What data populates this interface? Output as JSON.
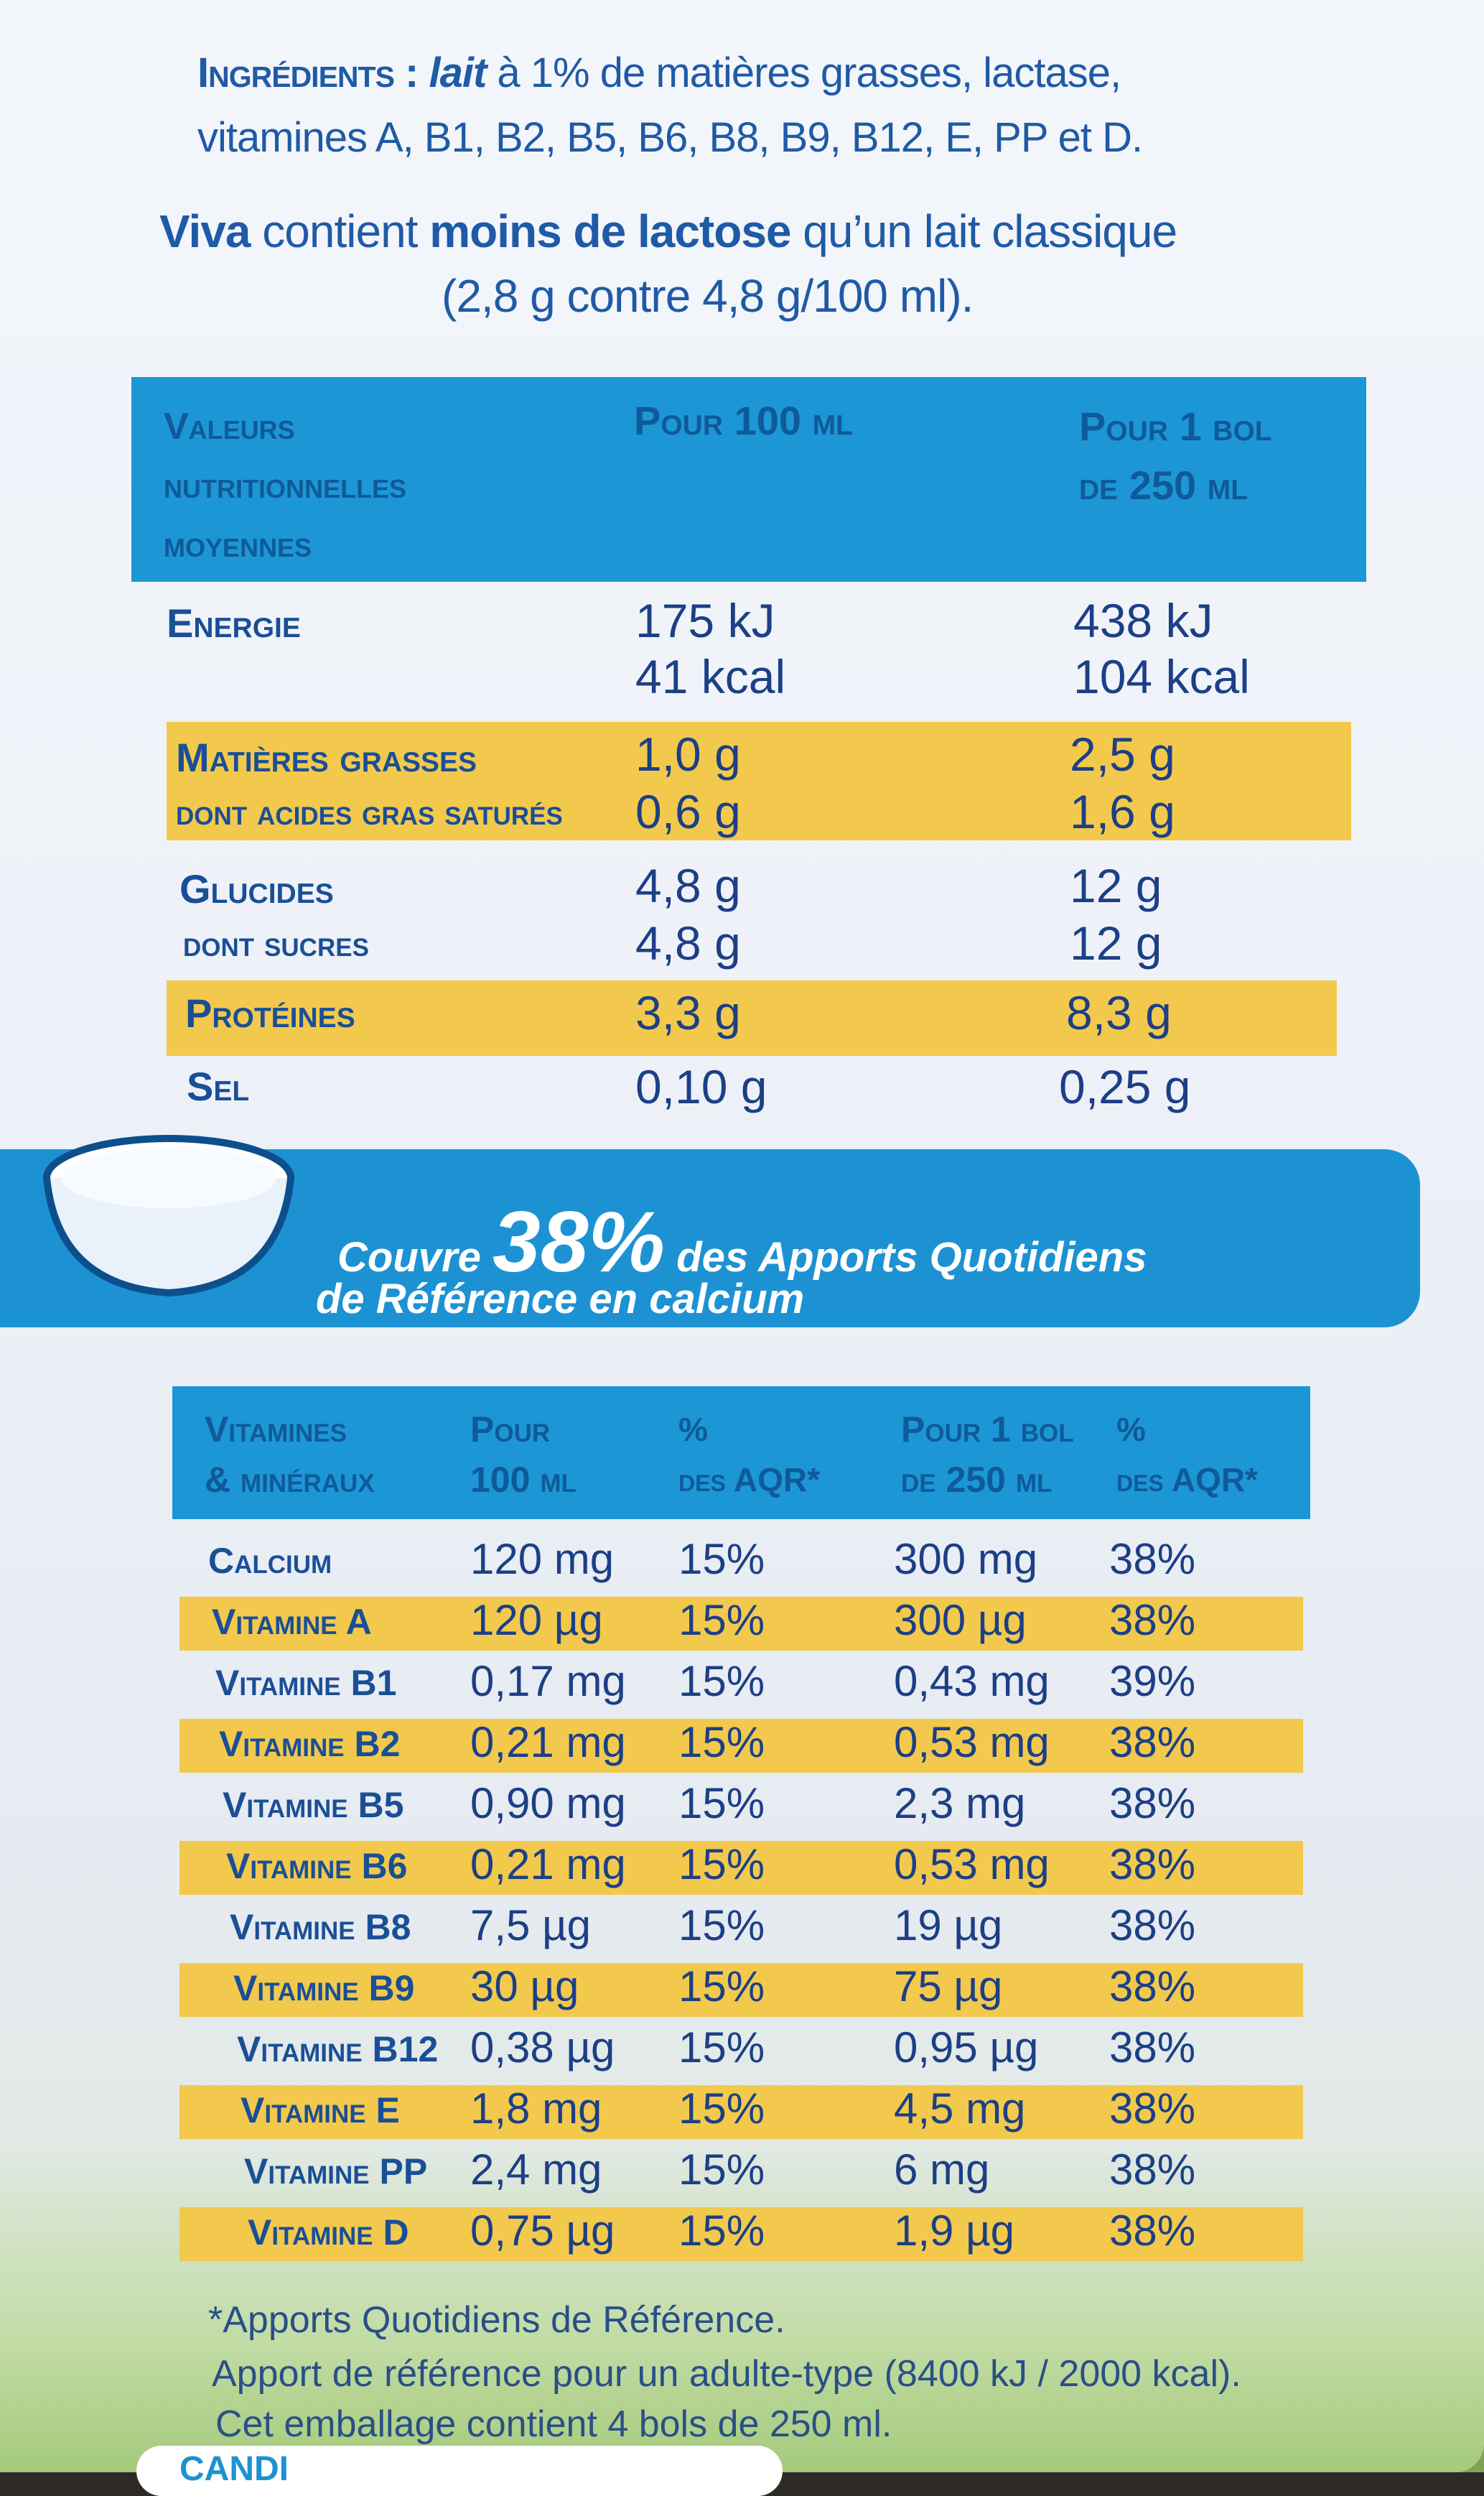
{
  "ingredients": {
    "label": "Ingrédients :",
    "lait": "lait",
    "line1_rest": " à 1% de matières grasses, lactase,",
    "line2": "vitamines A, B1, B2, B5, B6, B8, B9, B12, E, PP et D."
  },
  "lactose_note": {
    "brand": "Viva",
    "text1": " contient ",
    "bold": "moins de lactose",
    "text2": " qu’un lait classique",
    "line2": "(2,8 g contre 4,8 g/100 ml)."
  },
  "nutrition": {
    "header": {
      "col1": [
        "Valeurs",
        "nutritionnelles",
        "moyennes"
      ],
      "col2": "Pour 100 ml",
      "col3": [
        "Pour 1 bol",
        "de 250 ml"
      ]
    },
    "rows": [
      {
        "label": "Energie",
        "v100": [
          "175 kJ",
          "41 kcal"
        ],
        "vbol": [
          "438 kJ",
          "104 kcal"
        ]
      },
      {
        "label": "Matières grasses",
        "v100": "1,0 g",
        "vbol": "2,5 g"
      },
      {
        "label": "dont acides gras saturés",
        "v100": "0,6 g",
        "vbol": "1,6 g"
      },
      {
        "label": "Glucides",
        "v100": "4,8 g",
        "vbol": "12 g"
      },
      {
        "label": "dont sucres",
        "v100": "4,8 g",
        "vbol": "12 g"
      },
      {
        "label": "Protéines",
        "v100": "3,3 g",
        "vbol": "8,3 g"
      },
      {
        "label": "Sel",
        "v100": "0,10 g",
        "vbol": "0,25 g"
      }
    ]
  },
  "calcium_banner": {
    "pre": "Couvre ",
    "big": "38%",
    "post": " des Apports Quotidiens",
    "line2": "de Référence en calcium"
  },
  "vitamins": {
    "header": {
      "col1": [
        "Vitamines",
        "& minéraux"
      ],
      "col2": [
        "Pour",
        "100 ml"
      ],
      "col3": [
        "%",
        "des AQR*"
      ],
      "col4": [
        "Pour 1 bol",
        "de 250 ml"
      ],
      "col5": [
        "%",
        "des AQR*"
      ]
    },
    "rows": [
      {
        "label": "Calcium",
        "v100": "120 mg",
        "aqr100": "15%",
        "vbol": "300 mg",
        "aqrbol": "38%"
      },
      {
        "label": "Vitamine A",
        "v100": "120 µg",
        "aqr100": "15%",
        "vbol": "300 µg",
        "aqrbol": "38%"
      },
      {
        "label": "Vitamine B1",
        "v100": "0,17 mg",
        "aqr100": "15%",
        "vbol": "0,43 mg",
        "aqrbol": "39%"
      },
      {
        "label": "Vitamine B2",
        "v100": "0,21 mg",
        "aqr100": "15%",
        "vbol": "0,53 mg",
        "aqrbol": "38%"
      },
      {
        "label": "Vitamine B5",
        "v100": "0,90 mg",
        "aqr100": "15%",
        "vbol": "2,3 mg",
        "aqrbol": "38%"
      },
      {
        "label": "Vitamine B6",
        "v100": "0,21 mg",
        "aqr100": "15%",
        "vbol": "0,53 mg",
        "aqrbol": "38%"
      },
      {
        "label": "Vitamine B8",
        "v100": "7,5 µg",
        "aqr100": "15%",
        "vbol": "19 µg",
        "aqrbol": "38%"
      },
      {
        "label": "Vitamine B9",
        "v100": "30 µg",
        "aqr100": "15%",
        "vbol": "75 µg",
        "aqrbol": "38%"
      },
      {
        "label": "Vitamine B12",
        "v100": "0,38 µg",
        "aqr100": "15%",
        "vbol": "0,95 µg",
        "aqrbol": "38%"
      },
      {
        "label": "Vitamine E",
        "v100": "1,8 mg",
        "aqr100": "15%",
        "vbol": "4,5 mg",
        "aqrbol": "38%"
      },
      {
        "label": "Vitamine PP",
        "v100": "2,4 mg",
        "aqr100": "15%",
        "vbol": "6 mg",
        "aqrbol": "38%"
      },
      {
        "label": "Vitamine D",
        "v100": "0,75 µg",
        "aqr100": "15%",
        "vbol": "1,9 µg",
        "aqrbol": "38%"
      }
    ]
  },
  "footnotes": [
    "*Apports Quotidiens de Référence.",
    "Apport de référence pour un adulte-type (8400 kJ / 2000 kcal).",
    "Cet emballage contient 4 bols de 250 ml."
  ],
  "bottom_cut_text": "CANDI"
}
